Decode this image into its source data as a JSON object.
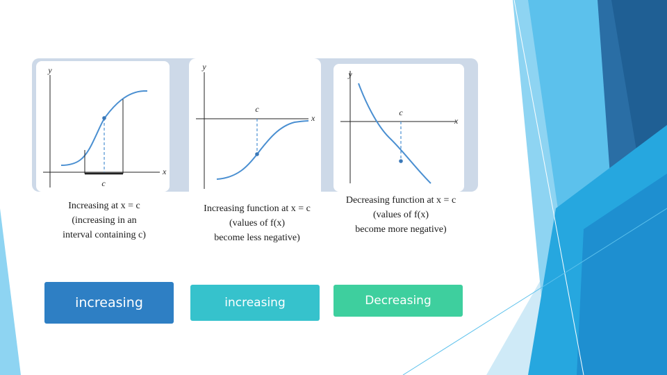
{
  "graphs": [
    {
      "axis_y": "y",
      "axis_x": "x",
      "point_label": "c",
      "caption": [
        "Increasing at x = c",
        "(increasing in an",
        "interval containing c)"
      ]
    },
    {
      "axis_y": "y",
      "axis_x": "x",
      "point_label": "c",
      "caption": [
        "Increasing function at x = c",
        "(values of f(x)",
        "become less negative)"
      ]
    },
    {
      "axis_y": "y",
      "axis_x": "x",
      "point_label": "c",
      "caption": [
        "Decreasing function at x = c",
        "(values of f(x)",
        "become more negative)"
      ]
    }
  ],
  "buttons": [
    {
      "label": "increasing",
      "color": "#2e7fc4"
    },
    {
      "label": "increasing",
      "color": "#36c2cc"
    },
    {
      "label": "Decreasing",
      "color": "#3ecf9e"
    }
  ],
  "colors": {
    "curve": "#4a8fd1",
    "strip": "#cdd9e8"
  }
}
